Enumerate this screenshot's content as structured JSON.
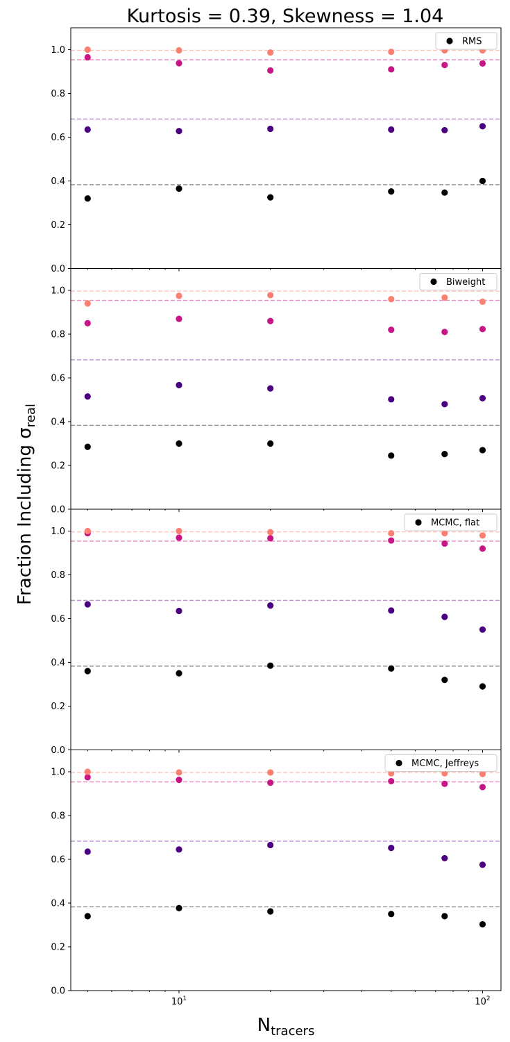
{
  "chart_data": {
    "type": "scatter",
    "title": "Kurtosis = 0.39, Skewness = 1.04",
    "ylabel": "Fraction Including σ",
    "ylabel_sub": "real",
    "xlabel": "N",
    "xlabel_sub": "tracers",
    "xscale": "log",
    "xlim": [
      4.4,
      115
    ],
    "ylim": [
      0,
      1.1
    ],
    "yticks": [
      0.0,
      0.2,
      0.4,
      0.6,
      0.8,
      1.0
    ],
    "xticks": [
      {
        "value": 10,
        "base": "10",
        "exp": "1"
      },
      {
        "value": 100,
        "base": "10",
        "exp": "2"
      }
    ],
    "x": [
      5,
      10,
      20,
      50,
      75,
      100
    ],
    "reference_lines": [
      {
        "y": 0.383,
        "color": "#999999"
      },
      {
        "y": 0.683,
        "color": "#c197d2"
      },
      {
        "y": 0.954,
        "color": "#e994c6"
      },
      {
        "y": 0.997,
        "color": "#fbc8bf"
      }
    ],
    "series_colors": [
      "#000000",
      "#4b0082",
      "#c71585",
      "#fa8072"
    ],
    "panels": [
      {
        "legend": "RMS",
        "series": [
          {
            "values": [
              0.32,
              0.365,
              0.325,
              0.352,
              0.347,
              0.4
            ]
          },
          {
            "values": [
              0.635,
              0.628,
              0.638,
              0.635,
              0.632,
              0.65
            ]
          },
          {
            "values": [
              0.965,
              0.938,
              0.905,
              0.91,
              0.93,
              0.937
            ]
          },
          {
            "values": [
              1.0,
              0.997,
              0.987,
              0.99,
              0.997,
              0.997
            ]
          }
        ]
      },
      {
        "legend": "Biweight",
        "series": [
          {
            "values": [
              0.285,
              0.3,
              0.3,
              0.245,
              0.252,
              0.27
            ]
          },
          {
            "values": [
              0.515,
              0.567,
              0.552,
              0.502,
              0.48,
              0.507
            ]
          },
          {
            "values": [
              0.85,
              0.87,
              0.86,
              0.82,
              0.81,
              0.823
            ]
          },
          {
            "values": [
              0.94,
              0.975,
              0.978,
              0.96,
              0.967,
              0.948
            ]
          }
        ]
      },
      {
        "legend": "MCMC, flat",
        "series": [
          {
            "values": [
              0.36,
              0.35,
              0.385,
              0.372,
              0.32,
              0.29
            ]
          },
          {
            "values": [
              0.665,
              0.635,
              0.66,
              0.637,
              0.608,
              0.55
            ]
          },
          {
            "values": [
              0.99,
              0.97,
              0.967,
              0.957,
              0.943,
              0.92
            ]
          },
          {
            "values": [
              1.0,
              1.0,
              0.995,
              0.99,
              0.99,
              0.98
            ]
          }
        ]
      },
      {
        "legend": "MCMC, Jeffreys",
        "series": [
          {
            "values": [
              0.34,
              0.377,
              0.362,
              0.35,
              0.34,
              0.303
            ]
          },
          {
            "values": [
              0.635,
              0.645,
              0.665,
              0.652,
              0.605,
              0.575
            ]
          },
          {
            "values": [
              0.975,
              0.963,
              0.95,
              0.957,
              0.945,
              0.93
            ]
          },
          {
            "values": [
              1.0,
              0.997,
              0.997,
              0.993,
              0.993,
              0.99
            ]
          }
        ]
      }
    ]
  }
}
